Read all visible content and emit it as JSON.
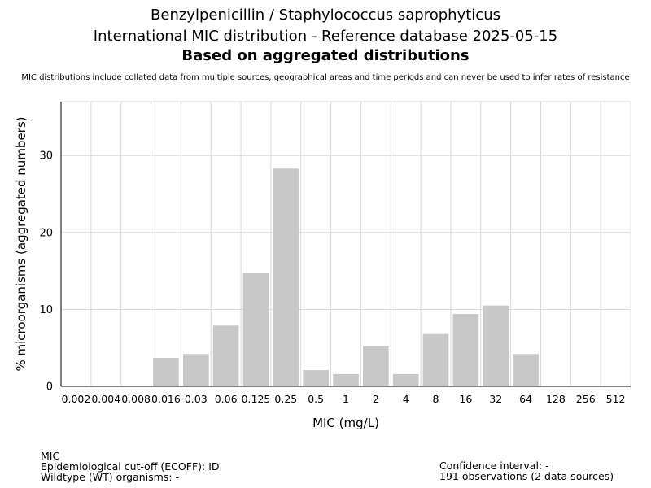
{
  "header": {
    "title_line1": "Benzylpenicillin / Staphylococcus saprophyticus",
    "title_line2": "International MIC distribution - Reference database 2025-05-15",
    "title_line3": "Based on aggregated distributions",
    "note": "MIC distributions include collated data from multiple sources, geographical areas and time periods and can never be used to infer rates of resistance"
  },
  "chart_data": {
    "type": "bar",
    "title": "Benzylpenicillin / Staphylococcus saprophyticus",
    "xlabel": "MIC (mg/L)",
    "ylabel": "% microorganisms (aggregated numbers)",
    "categories": [
      "0.002",
      "0.004",
      "0.008",
      "0.016",
      "0.03",
      "0.06",
      "0.125",
      "0.25",
      "0.5",
      "1",
      "2",
      "4",
      "8",
      "16",
      "32",
      "64",
      "128",
      "256",
      "512"
    ],
    "values": [
      0,
      0,
      0,
      3.7,
      4.2,
      7.9,
      14.7,
      28.3,
      2.1,
      1.6,
      5.2,
      1.6,
      6.8,
      9.4,
      10.5,
      4.2,
      0,
      0,
      0
    ],
    "ylim": [
      0,
      37
    ],
    "yticks": [
      0,
      10,
      20,
      30
    ],
    "grid": true,
    "bar_color": "#c8c8c8",
    "grid_color": "#d9d9d9"
  },
  "footer": {
    "left_line1": "MIC",
    "left_line2": "Epidemiological cut-off (ECOFF): ID",
    "left_line3": "Wildtype (WT) organisms:  -",
    "right_line1": "Confidence interval: -",
    "right_line2": "191 observations (2 data sources)"
  }
}
